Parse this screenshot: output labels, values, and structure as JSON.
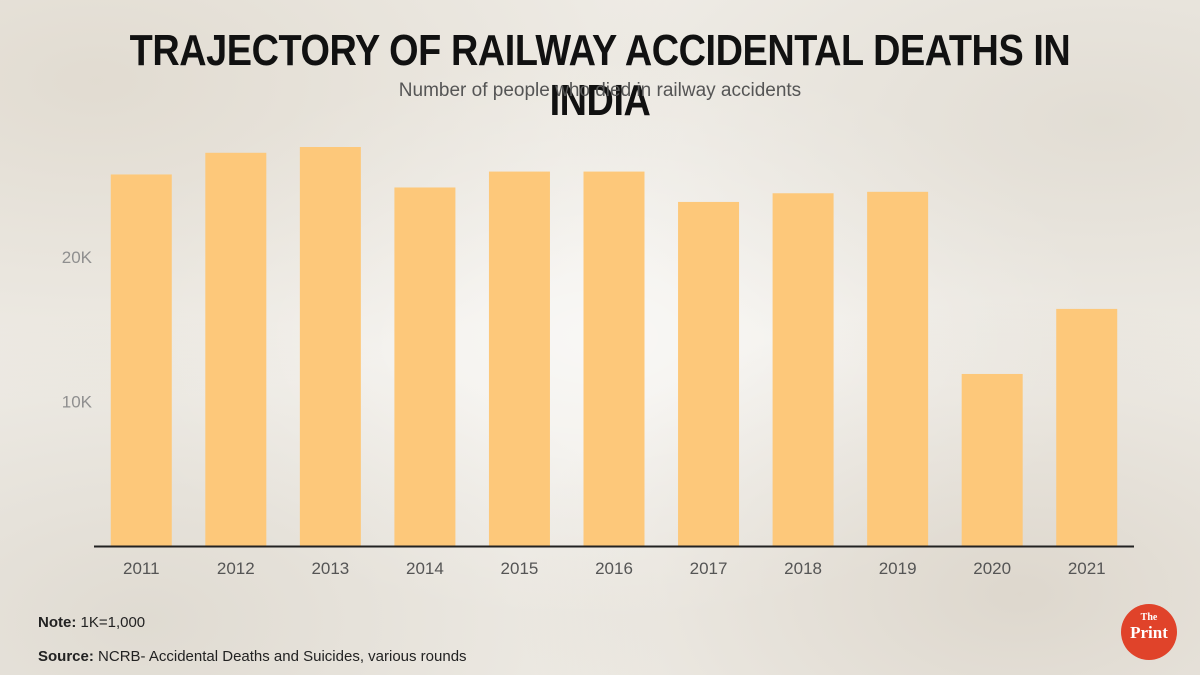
{
  "header": {
    "title": "TRAJECTORY OF RAILWAY ACCIDENTAL DEATHS IN INDIA",
    "subtitle": "Number of people who died in railway accidents"
  },
  "footer": {
    "note_label": "Note:",
    "note_text": "1K=1,000",
    "source_label": "Source:",
    "source_text": "NCRB- Accidental Deaths and Suicides, various rounds"
  },
  "logo": {
    "the": "The",
    "print": "Print"
  },
  "colors": {
    "bar": "#fdc87a",
    "axis": "#222222",
    "logo": "#e0432a"
  },
  "chart_data": {
    "type": "bar",
    "title": "TRAJECTORY OF RAILWAY ACCIDENTAL DEATHS IN INDIA",
    "subtitle": "Number of people who died in railway accidents",
    "xlabel": "",
    "ylabel": "",
    "categories": [
      "2011",
      "2012",
      "2013",
      "2014",
      "2015",
      "2016",
      "2017",
      "2018",
      "2019",
      "2020",
      "2021"
    ],
    "values": [
      25700,
      27200,
      27600,
      24800,
      25900,
      25900,
      23800,
      24400,
      24500,
      11900,
      16400
    ],
    "yticks": [
      10000,
      20000
    ],
    "ytick_labels": [
      "10K",
      "20K"
    ],
    "ylim": [
      0,
      27600
    ],
    "grid": false,
    "legend": "none"
  }
}
